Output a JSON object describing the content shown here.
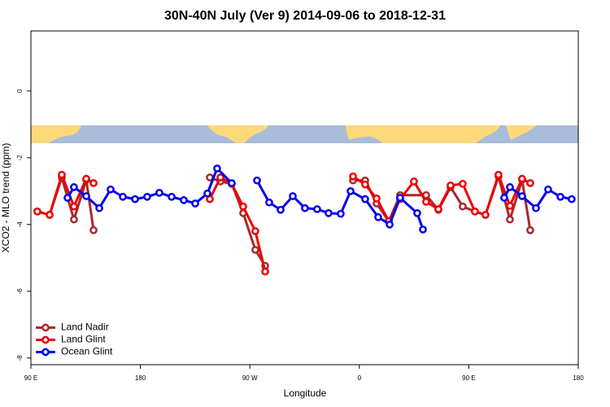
{
  "chart_data": {
    "type": "line",
    "title": "30N-40N July (Ver 9)   2014-09-06 to 2018-12-31",
    "xlabel": "Longitude",
    "ylabel": "XCO2 - MLO trend (ppm)",
    "xlim": [
      90,
      540
    ],
    "ylim": [
      -8.2,
      1.8
    ],
    "xticks": [
      {
        "value": 90,
        "label": "90 E"
      },
      180,
      {
        "value": 270,
        "label": "90 W"
      },
      {
        "value": 360,
        "label": "0"
      },
      {
        "value": 450,
        "label": "90 E"
      },
      {
        "value": 540,
        "label": "180"
      }
    ],
    "yticks": [
      0,
      -2,
      -4,
      -6,
      -8
    ],
    "grid": false,
    "legend": "bottomleft",
    "series": [
      {
        "name": "Land Nadir",
        "color": "#a52a2a",
        "x": [
          95.3,
          105.4,
          115.4,
          125.4,
          135.5,
          141.5,
          null,
          237.1,
          245.8,
          255.1,
          264.5,
          274.5,
          282.6,
          null,
          354.8,
          364.8,
          374.2,
          384.2,
          393.5,
          414.9,
          425,
          435,
          445,
          455,
          463.7,
          474.4,
          483.8,
          493.8,
          500.5
        ],
        "values": [
          -3.61,
          -3.71,
          -2.59,
          -3.85,
          -2.66,
          -4.17,
          null,
          -2.59,
          -2.71,
          -2.78,
          -3.66,
          -4.76,
          -5.24,
          null,
          -2.68,
          -2.68,
          -3.37,
          -3.9,
          -3.12,
          -3.12,
          -3.56,
          -2.88,
          -3.46,
          -3.61,
          -3.71,
          -2.56,
          -3.85,
          -2.66,
          -4.17
        ]
      },
      {
        "name": "Land Glint",
        "color": "#ee0000",
        "x": [
          95.3,
          105.4,
          115.4,
          125.4,
          135.5,
          141.5,
          null,
          237.1,
          245.8,
          255.1,
          264.5,
          274.5,
          282.6,
          null,
          354.8,
          364.8,
          374.2,
          384.2,
          393.5,
          404.9,
          414.9,
          425,
          435,
          445,
          455,
          463.7,
          474.4,
          483.8,
          493.8,
          500.5
        ],
        "values": [
          -3.61,
          -3.71,
          -2.51,
          -3.46,
          -2.63,
          -2.76,
          null,
          -3.24,
          -2.59,
          -2.78,
          -3.46,
          -4.2,
          -5.41,
          null,
          -2.56,
          -2.8,
          -3.22,
          -3.9,
          -3.24,
          -2.71,
          -3.32,
          -3.54,
          -2.83,
          -2.78,
          -3.61,
          -3.71,
          -2.51,
          -3.44,
          -2.63,
          -2.76
        ]
      },
      {
        "name": "Ocean Glint",
        "color": "#0000ee",
        "x": [
          120.1,
          125.4,
          135.5,
          146.2,
          155.5,
          165.6,
          175.6,
          185.6,
          195.6,
          205.7,
          215.7,
          225.1,
          235.1,
          243.1,
          255.1,
          null,
          275.9,
          285.9,
          295.3,
          305.3,
          315.3,
          325.3,
          334.7,
          344.7,
          352.8,
          364.8,
          375.5,
          384.9,
          393.5,
          407.6,
          412.3,
          null,
          479.1,
          483.8,
          493.8,
          505.2,
          515.2,
          525.3,
          534.6
        ],
        "values": [
          -3.2,
          -2.88,
          -3.15,
          -3.51,
          -2.95,
          -3.17,
          -3.24,
          -3.17,
          -3.05,
          -3.17,
          -3.27,
          -3.37,
          -3.07,
          -2.32,
          -2.76,
          null,
          -2.68,
          -3.34,
          -3.56,
          -3.15,
          -3.51,
          -3.54,
          -3.66,
          -3.68,
          -3.0,
          -3.24,
          -3.78,
          -4.0,
          -3.2,
          -3.66,
          -4.15,
          null,
          -3.2,
          -2.88,
          -3.15,
          -3.51,
          -2.95,
          -3.17,
          -3.24
        ]
      }
    ]
  }
}
